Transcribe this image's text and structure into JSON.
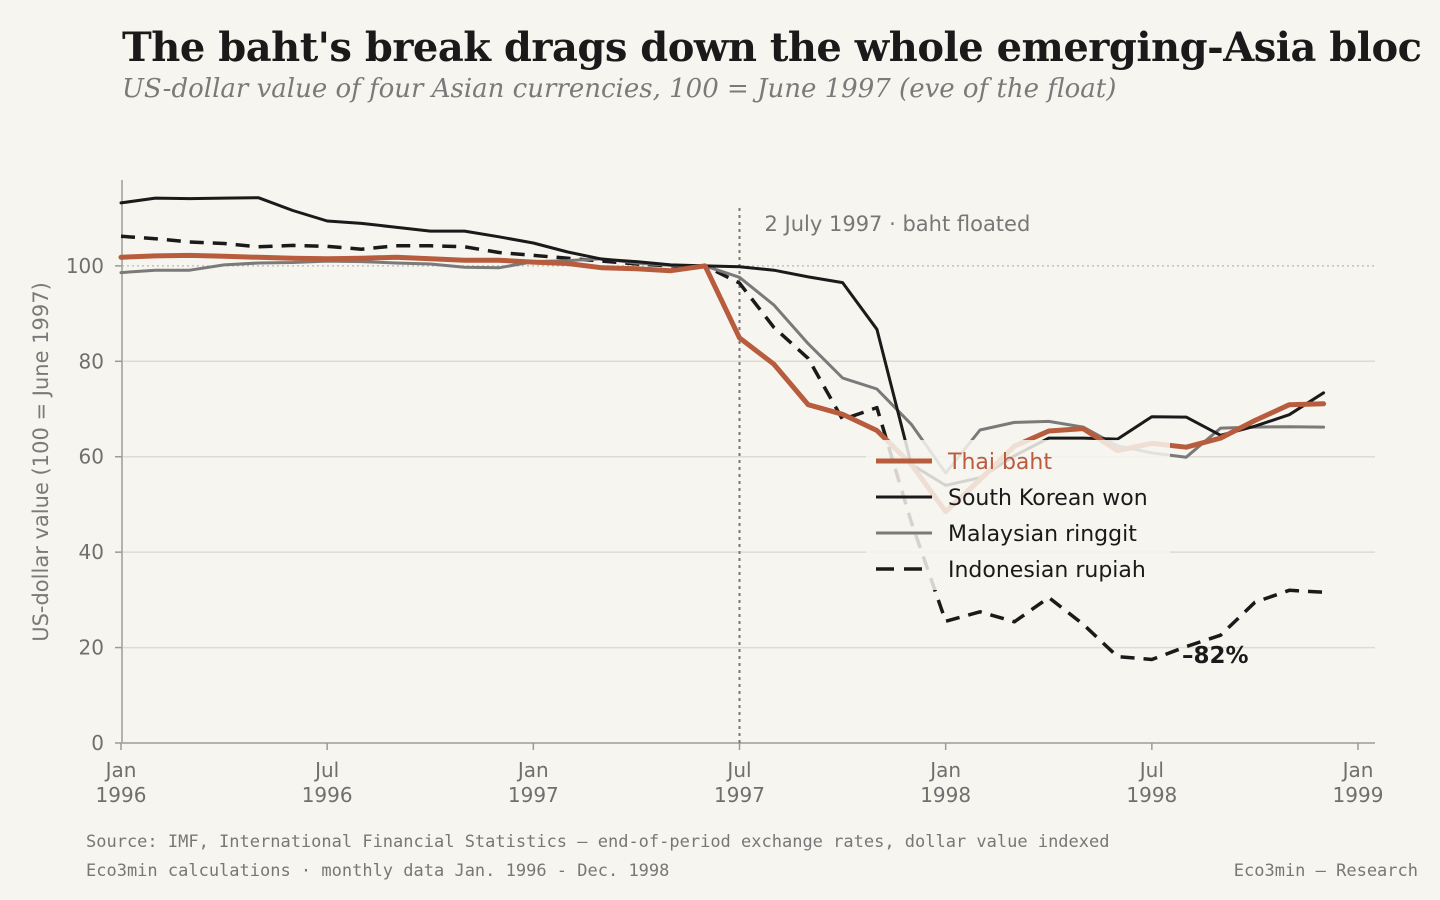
{
  "title": "The baht's break drags down the whole emerging-Asia bloc",
  "subtitle": "US-dollar value of four Asian currencies, 100 = June 1997 (eve of the float)",
  "footer": {
    "source_line1": "Source: IMF, International Financial Statistics — end-of-period exchange rates, dollar value indexed",
    "source_line2": "Eco3min calculations · monthly data Jan. 1996 - Dec. 1998",
    "brand": "Eco3min — Research"
  },
  "chart_data": {
    "type": "line",
    "title": "The baht's break drags down the whole emerging-Asia bloc",
    "subtitle": "US-dollar value of four Asian currencies, 100 = June 1997 (eve of the float)",
    "xlabel": "",
    "ylabel": "US-dollar value (100 = June 1997)",
    "ylim": [
      0,
      118
    ],
    "yticks": [
      0,
      20,
      40,
      60,
      80,
      100
    ],
    "xlim": [
      "1996-01",
      "1999-01"
    ],
    "xticks": [
      {
        "date": "1996-01",
        "label": [
          "Jan",
          "1996"
        ]
      },
      {
        "date": "1996-07",
        "label": [
          "Jul",
          "1996"
        ]
      },
      {
        "date": "1997-01",
        "label": [
          "Jan",
          "1997"
        ]
      },
      {
        "date": "1997-07",
        "label": [
          "Jul",
          "1997"
        ]
      },
      {
        "date": "1998-01",
        "label": [
          "Jan",
          "1998"
        ]
      },
      {
        "date": "1998-07",
        "label": [
          "Jul",
          "1998"
        ]
      },
      {
        "date": "1999-01",
        "label": [
          "Jan",
          "1999"
        ]
      }
    ],
    "x": [
      "1996-01",
      "1996-02",
      "1996-03",
      "1996-04",
      "1996-05",
      "1996-06",
      "1996-07",
      "1996-08",
      "1996-09",
      "1996-10",
      "1996-11",
      "1996-12",
      "1997-01",
      "1997-02",
      "1997-03",
      "1997-04",
      "1997-05",
      "1997-06",
      "1997-07",
      "1997-08",
      "1997-09",
      "1997-10",
      "1997-11",
      "1997-12",
      "1998-01",
      "1998-02",
      "1998-03",
      "1998-04",
      "1998-05",
      "1998-06",
      "1998-07",
      "1998-08",
      "1998-09",
      "1998-10",
      "1998-11",
      "1998-12"
    ],
    "series": [
      {
        "name": "Thai baht",
        "color": "#b85c3e",
        "width": 5,
        "dash": "",
        "values": [
          101.8,
          102.1,
          102.2,
          102.0,
          101.8,
          101.6,
          101.5,
          101.6,
          101.8,
          101.5,
          101.2,
          101.2,
          100.8,
          100.5,
          99.6,
          99.4,
          99.0,
          100.0,
          84.9,
          79.4,
          70.9,
          68.9,
          65.5,
          58.4,
          48.5,
          55.2,
          62.2,
          65.4,
          65.9,
          61.3,
          62.8,
          62.0,
          63.9,
          67.6,
          70.9,
          71.1
        ]
      },
      {
        "name": "South Korean won",
        "color": "#1a1a1a",
        "width": 3,
        "dash": "",
        "values": [
          113.2,
          114.2,
          114.1,
          114.2,
          114.3,
          111.6,
          109.4,
          108.9,
          108.1,
          107.3,
          107.3,
          106.1,
          104.8,
          102.9,
          101.4,
          100.9,
          100.2,
          100.0,
          99.8,
          99.1,
          97.7,
          96.5,
          86.7,
          58.4,
          54.0,
          55.6,
          60.2,
          63.9,
          63.9,
          63.7,
          68.4,
          68.3,
          64.5,
          66.4,
          68.8,
          73.4
        ]
      },
      {
        "name": "Malaysian ringgit",
        "color": "#7a7a7a",
        "width": 3,
        "dash": "",
        "values": [
          98.6,
          99.1,
          99.1,
          100.2,
          100.6,
          100.7,
          101.0,
          100.9,
          100.6,
          100.4,
          99.7,
          99.6,
          100.9,
          101.1,
          101.5,
          100.6,
          100.1,
          100.0,
          97.6,
          91.8,
          83.7,
          76.5,
          74.2,
          66.8,
          56.6,
          65.6,
          67.2,
          67.4,
          66.2,
          62.3,
          60.8,
          59.9,
          66.0,
          66.2,
          66.3,
          66.2
        ]
      },
      {
        "name": "Indonesian rupiah",
        "color": "#1a1a1a",
        "width": 3.5,
        "dash": "14 9",
        "values": [
          106.2,
          105.7,
          105.0,
          104.7,
          104.0,
          104.3,
          104.1,
          103.5,
          104.2,
          104.2,
          104.0,
          102.8,
          102.2,
          101.6,
          101.0,
          100.4,
          100.0,
          100.0,
          96.4,
          87.1,
          80.6,
          67.8,
          70.3,
          46.3,
          25.5,
          27.5,
          25.4,
          30.5,
          24.9,
          18.1,
          17.5,
          20.2,
          22.6,
          29.5,
          32.0,
          31.6
        ]
      }
    ],
    "reference_line": {
      "y": 100,
      "style": "dotted"
    },
    "event_line": {
      "date": "1997-07",
      "label": "2 July 1997 · baht floated"
    },
    "end_annotation": {
      "series": "Indonesian rupiah",
      "text": "–82%"
    },
    "legend": {
      "placement": "center-right"
    },
    "grid": {
      "y": true,
      "x": false
    }
  }
}
